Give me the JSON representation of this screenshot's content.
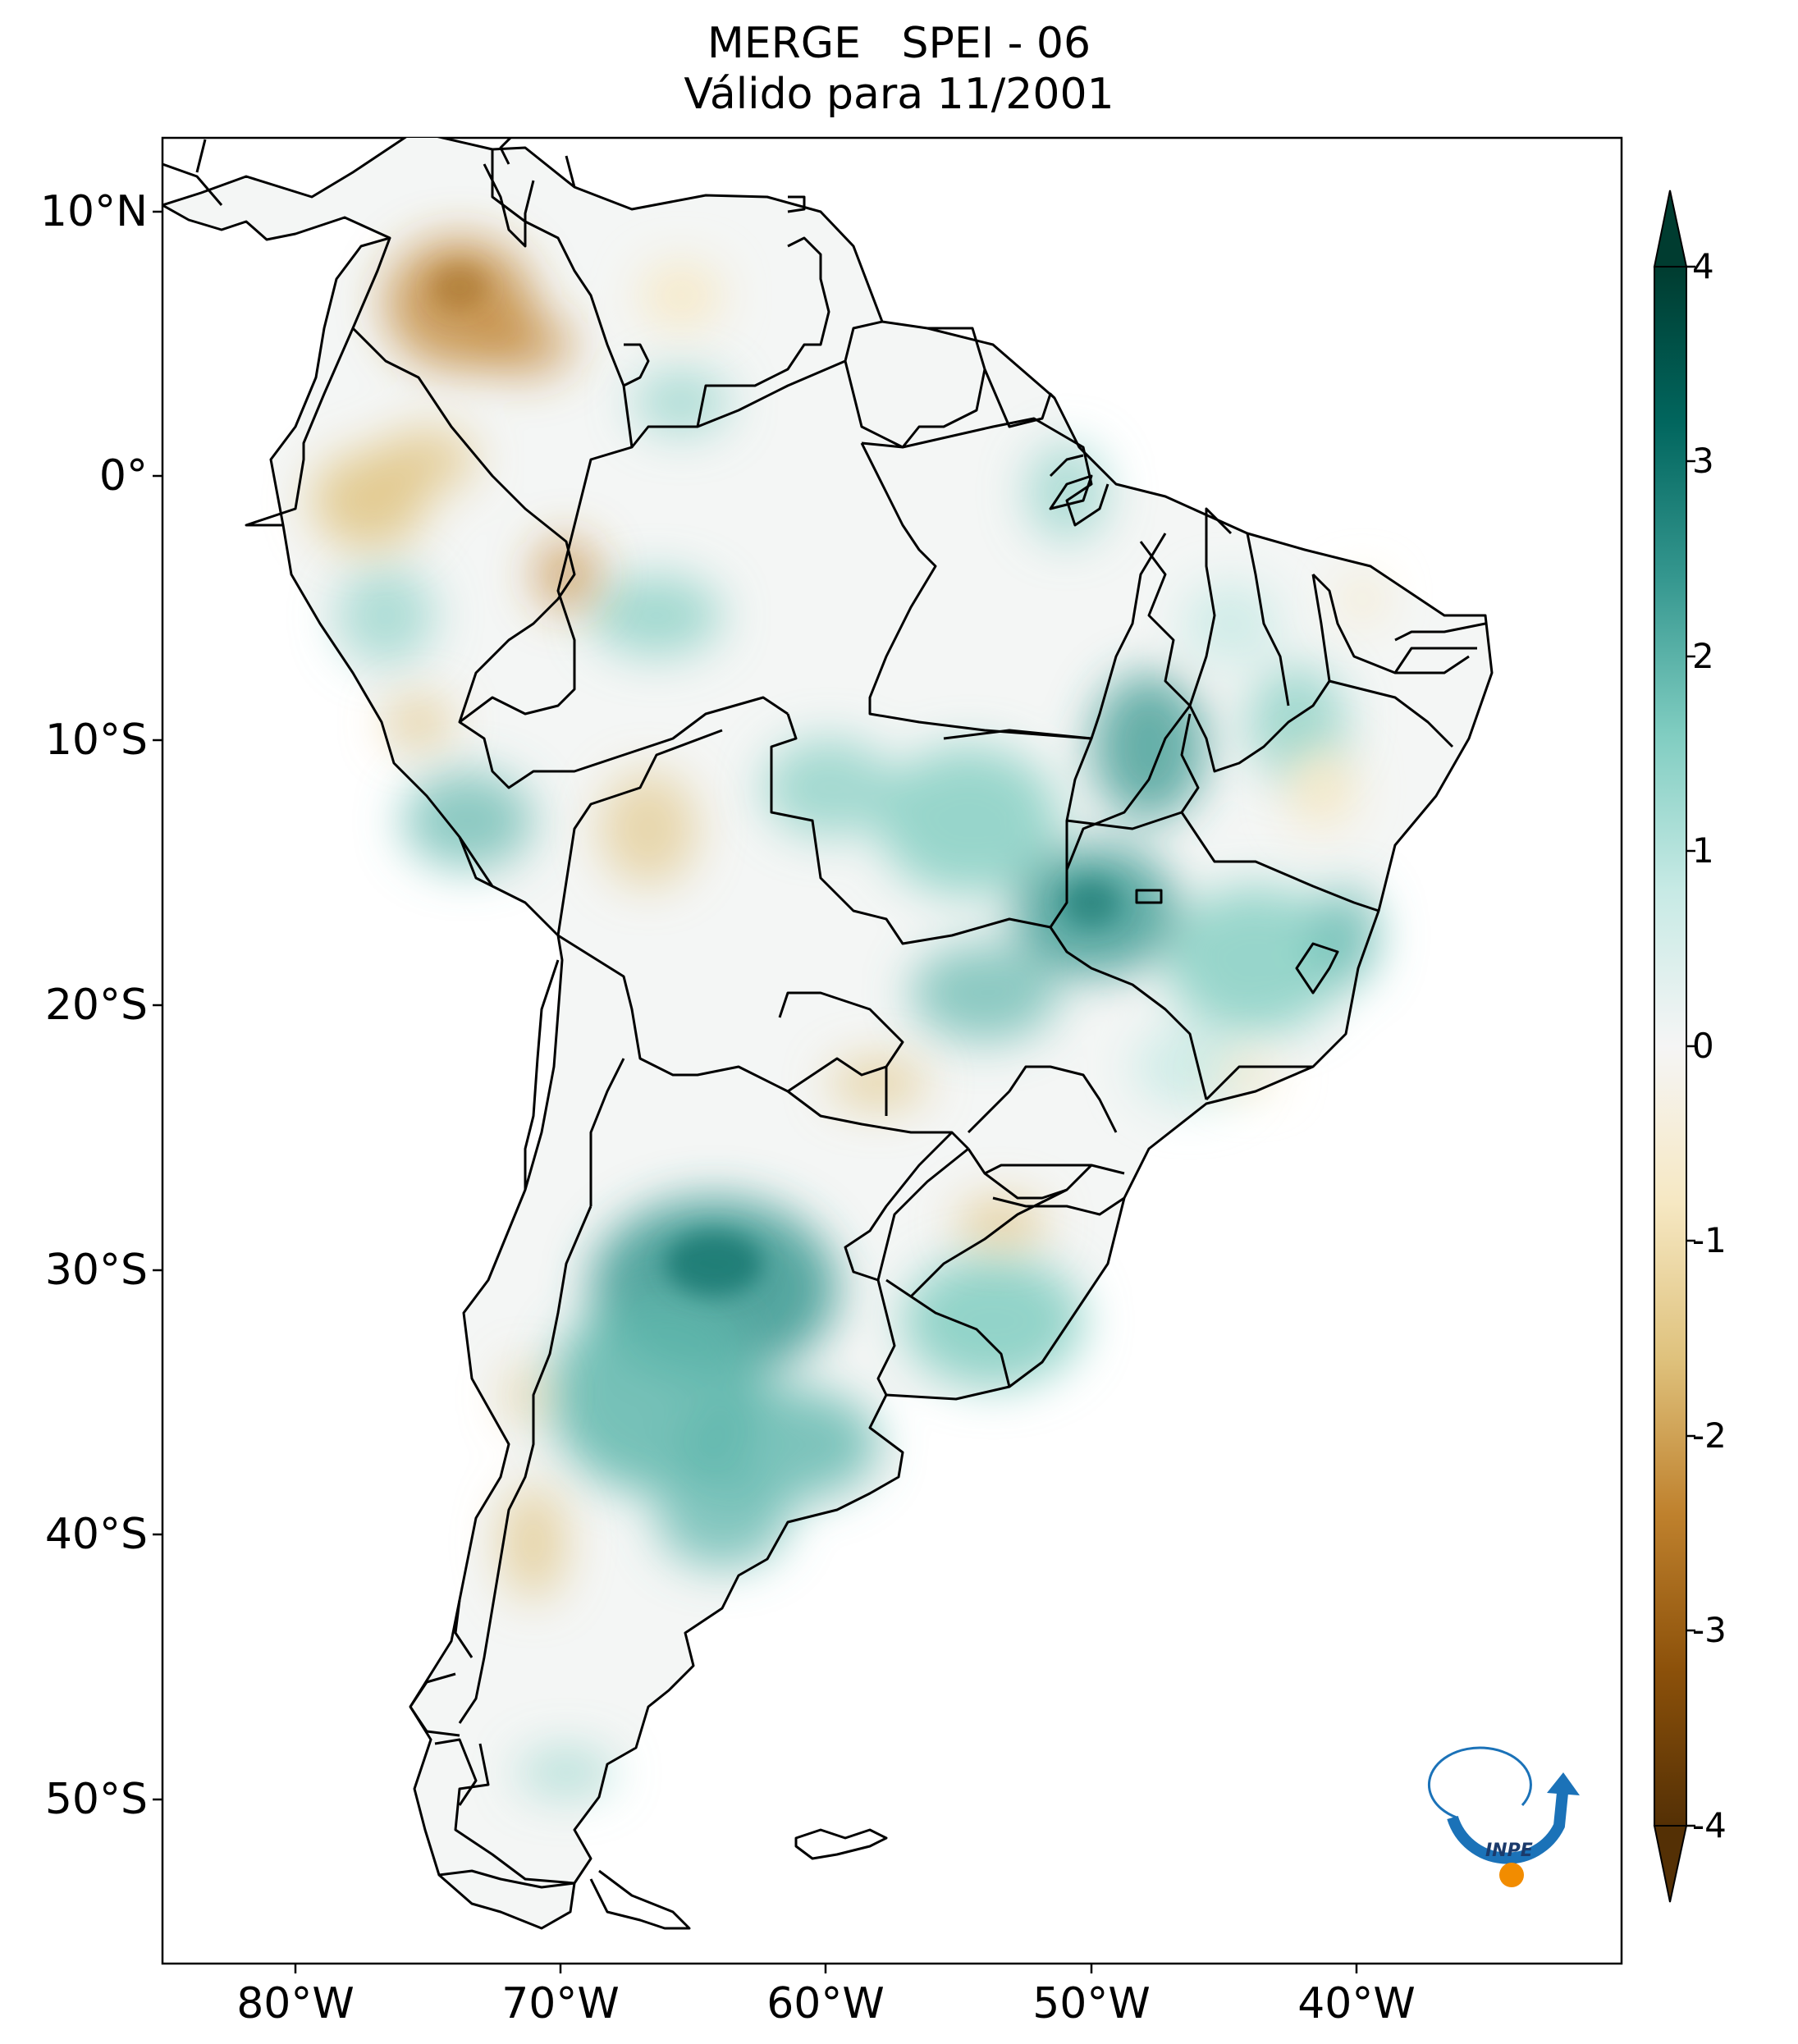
{
  "title": {
    "line1": "MERGE   SPEI - 06",
    "line2": "Válido para 11/2001"
  },
  "map": {
    "region": "South America",
    "lat_range": [
      -56,
      12
    ],
    "lon_range": [
      -85,
      -30
    ],
    "lat_ticks": [
      "10°N",
      "0°",
      "10°S",
      "20°S",
      "30°S",
      "40°S",
      "50°S"
    ],
    "lat_tick_values": [
      10,
      0,
      -10,
      -20,
      -30,
      -40,
      -50
    ],
    "lon_ticks": [
      "80°W",
      "70°W",
      "60°W",
      "50°W",
      "40°W"
    ],
    "lon_tick_values": [
      -80,
      -70,
      -60,
      -50,
      -40
    ]
  },
  "colorbar": {
    "colormap": "BrBG",
    "range": [
      -4,
      4
    ],
    "extend": "both",
    "tick_labels": [
      "4",
      "3",
      "2",
      "1",
      "0",
      "-1",
      "-2",
      "-3",
      "-4"
    ],
    "tick_values": [
      4,
      3,
      2,
      1,
      0,
      -1,
      -2,
      -3,
      -4
    ],
    "colors": [
      "#543005",
      "#8c510a",
      "#bf812d",
      "#dfc27d",
      "#f6e8c3",
      "#f5f5f5",
      "#c7eae5",
      "#80cdc1",
      "#35978f",
      "#01665e",
      "#003c30"
    ]
  },
  "logo": {
    "text": "INPE"
  }
}
